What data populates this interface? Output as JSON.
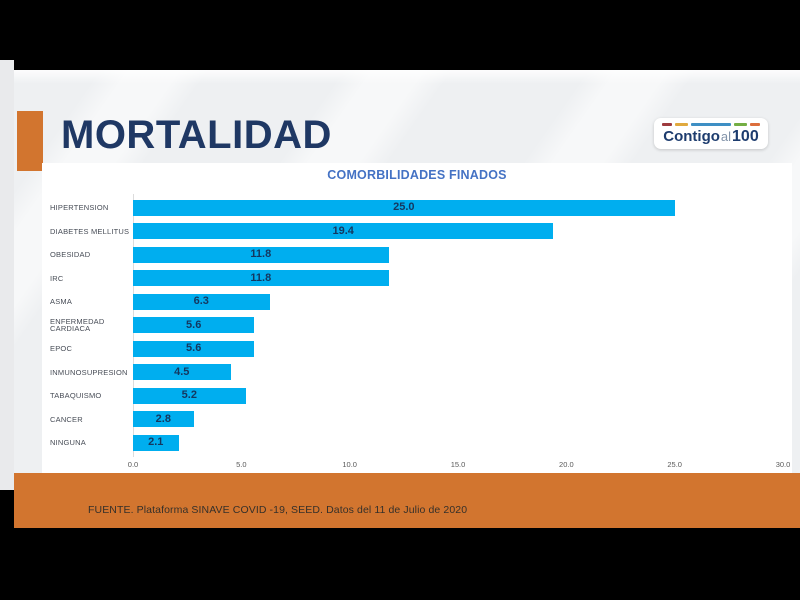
{
  "slide": {
    "title": "MORTALIDAD",
    "logo": {
      "text_parts": [
        "Contigo",
        "al",
        "100"
      ],
      "dashes": [
        {
          "color": "#9e3a3e",
          "width": 10
        },
        {
          "color": "#e0a93e",
          "width": 13
        },
        {
          "color": "#3e8fc4",
          "width": 40
        },
        {
          "color": "#74ae44",
          "width": 13
        },
        {
          "color": "#dc6e3c",
          "width": 10
        }
      ]
    },
    "footer": {
      "source_text": "FUENTE. Plataforma SINAVE COVID -19, SEED. Datos del 11 de Julio de 2020"
    }
  },
  "chart_data": {
    "type": "bar",
    "orientation": "horizontal",
    "title": "COMORBILIDADES FINADOS",
    "categories": [
      "HIPERTENSION",
      "DIABETES MELLITUS",
      "OBESIDAD",
      "IRC",
      "ASMA",
      "ENFERMEDAD CARDIACA",
      "EPOC",
      "INMUNOSUPRESION",
      "TABAQUISMO",
      "CANCER",
      "NINGUNA"
    ],
    "values": [
      25.0,
      19.4,
      11.8,
      11.8,
      6.3,
      5.6,
      5.6,
      4.5,
      5.2,
      2.8,
      2.1
    ],
    "xlim": [
      0,
      30
    ],
    "x_ticks": [
      "0.0",
      "5.0",
      "10.0",
      "15.0",
      "20.0",
      "25.0",
      "30.0"
    ],
    "grid": false,
    "legend": "none",
    "bar_color": "#00AEEF",
    "value_label_color": "#14375F"
  },
  "colors": {
    "accent_orange": "#D2752F",
    "title_navy": "#1F3864",
    "chart_title_blue": "#4472C4",
    "slide_background": "#EEF0F2",
    "canvas_black": "#000000"
  }
}
